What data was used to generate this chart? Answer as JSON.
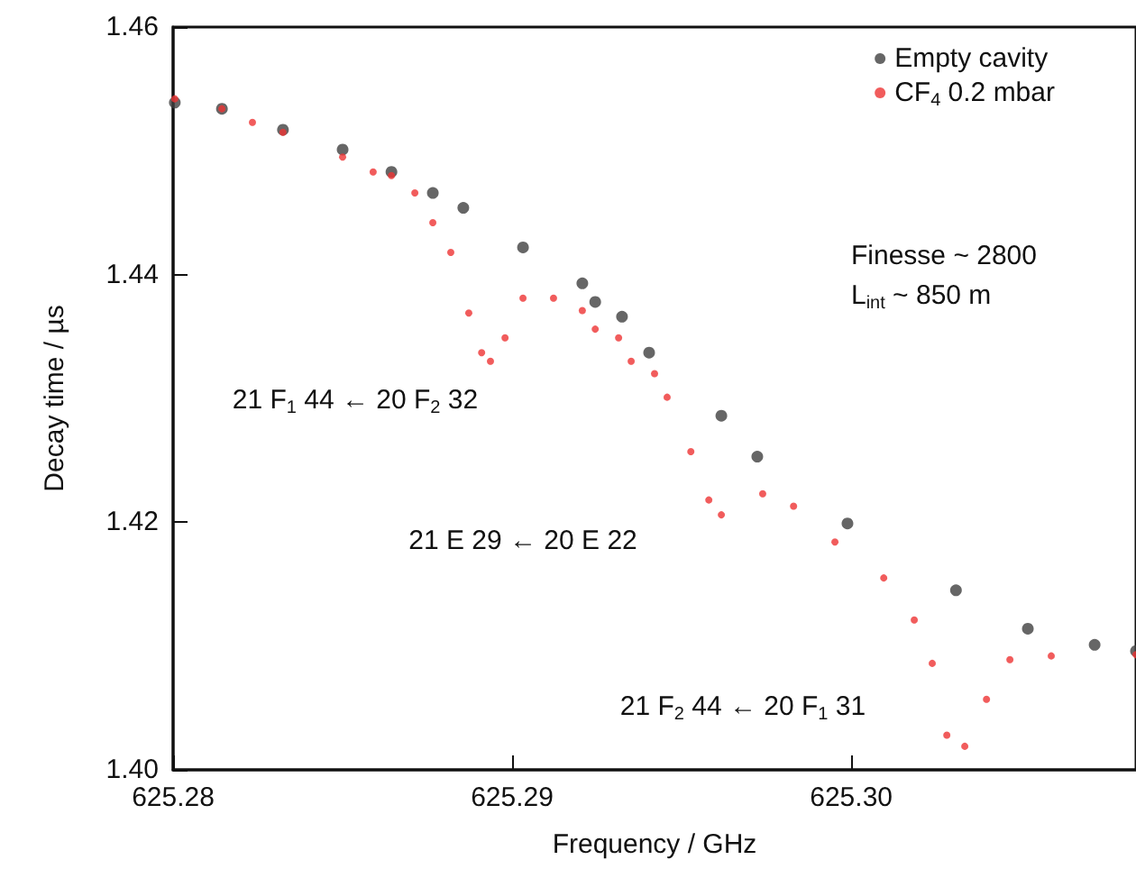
{
  "chart_data": {
    "type": "scatter",
    "xlabel": "Frequency / GHz",
    "ylabel": "Decay time / µs",
    "xlim": [
      625.28,
      625.3084
    ],
    "ylim": [
      1.4,
      1.46
    ],
    "xticks": [
      625.28,
      625.29,
      {
        "value": 625.3,
        "label": "625.30"
      }
    ],
    "yticks": [
      {
        "value": 1.4,
        "label": "1.40"
      },
      {
        "value": 1.42,
        "label": "1.42"
      },
      {
        "value": 1.44,
        "label": "1.44"
      },
      {
        "value": 1.46,
        "label": "1.46"
      }
    ],
    "grid": false,
    "legend": "top right",
    "marker": "circle",
    "series": [
      {
        "name": "Empty cavity",
        "color": "#404040",
        "x": [
          625.28005,
          625.28144,
          625.28324,
          625.285,
          625.28644,
          625.28766,
          625.28856,
          625.29032,
          625.29207,
          625.29245,
          625.29324,
          625.29404,
          625.29617,
          625.29723,
          625.29989,
          625.30309,
          625.30521,
          625.30718,
          625.3084
        ],
        "values": [
          1.4539,
          1.4534,
          1.4517,
          1.4501,
          1.4483,
          1.4466,
          1.4454,
          1.4422,
          1.4393,
          1.4378,
          1.4366,
          1.4337,
          1.4286,
          1.4253,
          1.4199,
          1.4145,
          1.4114,
          1.4101,
          1.4096
        ]
      },
      {
        "name": "CF$_{4}$ 0.2 mbar",
        "color": "#ee3333",
        "x": [
          625.28005,
          625.28144,
          625.28234,
          625.28324,
          625.285,
          625.2859,
          625.28644,
          625.28713,
          625.28766,
          625.28819,
          625.28872,
          625.2891,
          625.28936,
          625.28979,
          625.29032,
          625.29122,
          625.29207,
          625.29245,
          625.29314,
          625.29351,
          625.2942,
          625.29457,
          625.29527,
          625.2958,
          625.29617,
          625.29739,
          625.2983,
          625.29952,
          625.30096,
          625.30186,
          625.30239,
          625.30282,
          625.30335,
          625.30399,
          625.30468,
          625.3059,
          625.3084
        ],
        "values": [
          1.4542,
          1.4534,
          1.4523,
          1.4515,
          1.4495,
          1.4483,
          1.448,
          1.4466,
          1.4442,
          1.4418,
          1.4369,
          1.4337,
          1.433,
          1.4349,
          1.4381,
          1.4381,
          1.4371,
          1.4356,
          1.4349,
          1.433,
          1.432,
          1.4301,
          1.4257,
          1.4218,
          1.4206,
          1.4223,
          1.4213,
          1.4184,
          1.4155,
          1.4121,
          1.4086,
          1.4028,
          1.4019,
          1.4057,
          1.4089,
          1.4092,
          1.4093
        ]
      }
    ],
    "annotations": [
      "21 F$_{1}$ 44 ← 20 F$_{2}$ 32",
      "21 E 29 ← 20 E 22",
      "21 F$_{2}$ 44 ← 20 F$_{1}$ 31",
      "Finesse ~ 2800",
      "L$_{int}$ ~ 850 m"
    ]
  }
}
